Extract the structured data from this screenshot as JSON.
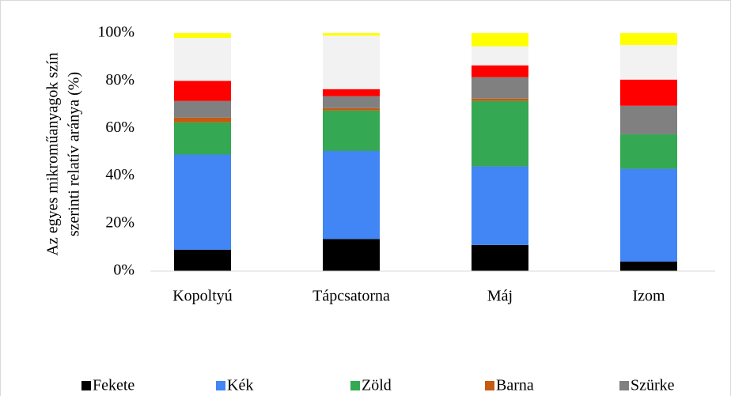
{
  "chart_data": {
    "type": "stacked_bar",
    "ylabel": [
      "Az egyes mikroműanyagok szín",
      "szerinti  relatív aránya (%)"
    ],
    "categories": [
      "Kopoltyú",
      "Tápcsatorna",
      "Máj",
      "Izom"
    ],
    "series": [
      {
        "name": "Fekete",
        "color": "#000000",
        "values": [
          9,
          13.5,
          11,
          4
        ]
      },
      {
        "name": "Kék",
        "color": "#4285f4",
        "values": [
          40,
          37,
          33,
          39
        ]
      },
      {
        "name": "Zöld",
        "color": "#34a853",
        "values": [
          13.5,
          17,
          27.5,
          14.5
        ]
      },
      {
        "name": "Barna",
        "color": "#c55a11",
        "values": [
          2,
          1,
          1,
          0
        ]
      },
      {
        "name": "Szürke",
        "color": "#808080",
        "values": [
          7,
          5,
          9,
          12
        ]
      },
      {
        "color": "#ff0000",
        "values": [
          8.5,
          3,
          5,
          11
        ]
      },
      {
        "color": "#f2f2f2",
        "values": [
          18,
          22.5,
          8,
          14.5
        ]
      },
      {
        "color": "#ffff00",
        "values": [
          2,
          1,
          5.5,
          5
        ]
      }
    ],
    "ylim": [
      0,
      100
    ],
    "yticks": [
      {
        "value": 0,
        "label": "0%"
      },
      {
        "value": 20,
        "label": "20%"
      },
      {
        "value": 40,
        "label": "40%"
      },
      {
        "value": 60,
        "label": "60%"
      },
      {
        "value": 80,
        "label": "80%"
      },
      {
        "value": 100,
        "label": "100%"
      }
    ],
    "grid": false,
    "legend": "bottom"
  }
}
